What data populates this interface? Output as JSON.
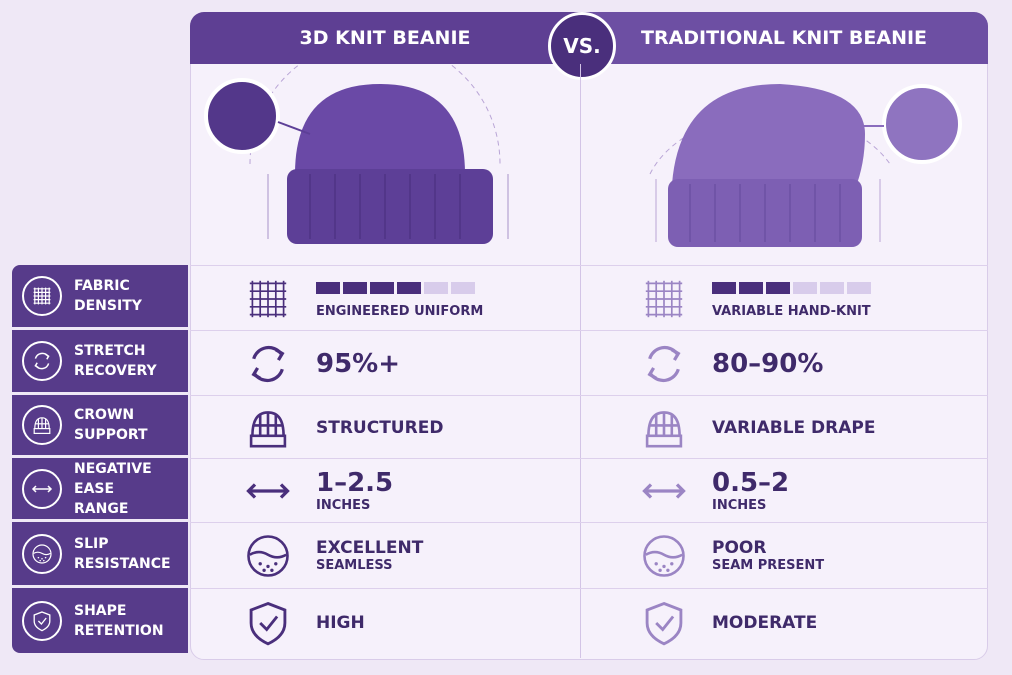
{
  "header": {
    "left_title": "3D KNIT BEANIE",
    "vs": "VS.",
    "right_title": "TRADITIONAL KNIT BEANIE"
  },
  "rating_max": 6,
  "rows": [
    {
      "label": [
        "FABRIC",
        "DENSITY"
      ],
      "left": {
        "value": "ENGINEERED UNIFORM",
        "rating": 4
      },
      "right": {
        "value": "VARIABLE HAND-KNIT",
        "rating": 3
      }
    },
    {
      "label": [
        "STRETCH",
        "RECOVERY"
      ],
      "left": {
        "big": "95%+"
      },
      "right": {
        "big": "80–90%"
      }
    },
    {
      "label": [
        "CROWN",
        "SUPPORT"
      ],
      "left": {
        "value": "STRUCTURED"
      },
      "right": {
        "value": "VARIABLE DRAPE"
      }
    },
    {
      "label": [
        "NEGATIVE EASE",
        "RANGE"
      ],
      "left": {
        "big": "1–2.5",
        "sub": "INCHES"
      },
      "right": {
        "big": "0.5–2",
        "sub": "INCHES"
      }
    },
    {
      "label": [
        "SLIP",
        "RESISTANCE"
      ],
      "left": {
        "value": "EXCELLENT",
        "sub": "SEAMLESS"
      },
      "right": {
        "value": "POOR",
        "sub": "SEAM PRESENT"
      }
    },
    {
      "label": [
        "SHAPE",
        "RETENTION"
      ],
      "left": {
        "value": "HIGH"
      },
      "right": {
        "value": "MODERATE"
      }
    }
  ]
}
